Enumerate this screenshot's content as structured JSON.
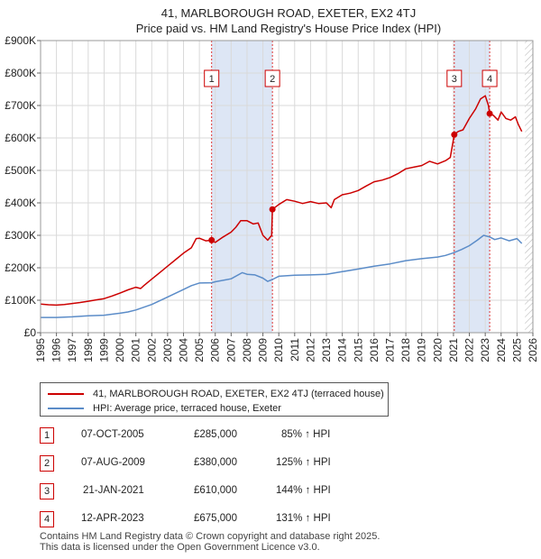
{
  "title_line1": "41, MARLBOROUGH ROAD, EXETER, EX2 4TJ",
  "title_line2": "Price paid vs. HM Land Registry's House Price Index (HPI)",
  "colors": {
    "property": "#cc0000",
    "hpi": "#5b8cc8",
    "shade": "#dde6f5",
    "grid": "#d9d9d9",
    "vline": "#dd3333"
  },
  "legend": {
    "property": "41, MARLBOROUGH ROAD, EXETER, EX2 4TJ (terraced house)",
    "hpi": "HPI: Average price, terraced house, Exeter"
  },
  "sales": [
    {
      "num": "1",
      "date": "07-OCT-2005",
      "price": "£285,000",
      "pct": "85% ↑ HPI"
    },
    {
      "num": "2",
      "date": "07-AUG-2009",
      "price": "£380,000",
      "pct": "125% ↑ HPI"
    },
    {
      "num": "3",
      "date": "21-JAN-2021",
      "price": "£610,000",
      "pct": "144% ↑ HPI"
    },
    {
      "num": "4",
      "date": "12-APR-2023",
      "price": "£675,000",
      "pct": "131% ↑ HPI"
    }
  ],
  "footer": {
    "line1": "Contains HM Land Registry data © Crown copyright and database right 2025.",
    "line2": "This data is licensed under the Open Government Licence v3.0."
  },
  "chart_data": {
    "type": "line",
    "title": "41, MARLBOROUGH ROAD, EXETER, EX2 4TJ — Price paid vs. HM Land Registry's House Price Index (HPI)",
    "xlabel": "",
    "ylabel": "",
    "xlim": [
      1995,
      2026
    ],
    "ylim": [
      0,
      900000
    ],
    "x_ticks": [
      "1995",
      "1996",
      "1997",
      "1998",
      "1999",
      "2000",
      "2001",
      "2002",
      "2003",
      "2004",
      "2005",
      "2006",
      "2007",
      "2008",
      "2009",
      "2010",
      "2011",
      "2012",
      "2013",
      "2014",
      "2015",
      "2016",
      "2017",
      "2018",
      "2019",
      "2020",
      "2021",
      "2022",
      "2023",
      "2024",
      "2025",
      "2026"
    ],
    "y_ticks": [
      {
        "value": 0,
        "label": "£0"
      },
      {
        "value": 100000,
        "label": "£100K"
      },
      {
        "value": 200000,
        "label": "£200K"
      },
      {
        "value": 300000,
        "label": "£300K"
      },
      {
        "value": 400000,
        "label": "£400K"
      },
      {
        "value": 500000,
        "label": "£500K"
      },
      {
        "value": 600000,
        "label": "£600K"
      },
      {
        "value": 700000,
        "label": "£700K"
      },
      {
        "value": 800000,
        "label": "£800K"
      },
      {
        "value": 900000,
        "label": "£900K"
      }
    ],
    "grid": true,
    "shaded_ranges": [
      [
        2005.77,
        2009.6
      ],
      [
        2021.05,
        2023.28
      ]
    ],
    "future_hatch_from": 2025.5,
    "sale_markers": [
      {
        "label": "1",
        "x": 2005.77,
        "y": 285000
      },
      {
        "label": "2",
        "x": 2009.6,
        "y": 380000
      },
      {
        "label": "3",
        "x": 2021.05,
        "y": 610000
      },
      {
        "label": "4",
        "x": 2023.28,
        "y": 675000
      }
    ],
    "series": [
      {
        "name": "41, MARLBOROUGH ROAD, EXETER, EX2 4TJ (terraced house)",
        "points": [
          [
            1995,
            88000
          ],
          [
            1995.5,
            86000
          ],
          [
            1996,
            85000
          ],
          [
            1996.5,
            87000
          ],
          [
            1997,
            90000
          ],
          [
            1997.5,
            93000
          ],
          [
            1998,
            97000
          ],
          [
            1998.5,
            101000
          ],
          [
            1999,
            105000
          ],
          [
            1999.5,
            113000
          ],
          [
            2000,
            122000
          ],
          [
            2000.5,
            132000
          ],
          [
            2001,
            140000
          ],
          [
            2001.3,
            136000
          ],
          [
            2001.5,
            145000
          ],
          [
            2002,
            165000
          ],
          [
            2002.5,
            185000
          ],
          [
            2003,
            205000
          ],
          [
            2003.5,
            225000
          ],
          [
            2004,
            245000
          ],
          [
            2004.5,
            262000
          ],
          [
            2004.8,
            290000
          ],
          [
            2005,
            291000
          ],
          [
            2005.4,
            283000
          ],
          [
            2005.77,
            285000
          ],
          [
            2006,
            278000
          ],
          [
            2006.5,
            295000
          ],
          [
            2007,
            310000
          ],
          [
            2007.3,
            325000
          ],
          [
            2007.6,
            345000
          ],
          [
            2008,
            345000
          ],
          [
            2008.4,
            335000
          ],
          [
            2008.7,
            338000
          ],
          [
            2009,
            300000
          ],
          [
            2009.3,
            285000
          ],
          [
            2009.55,
            300000
          ],
          [
            2009.6,
            380000
          ],
          [
            2010,
            395000
          ],
          [
            2010.5,
            410000
          ],
          [
            2011,
            405000
          ],
          [
            2011.5,
            398000
          ],
          [
            2012,
            404000
          ],
          [
            2012.5,
            398000
          ],
          [
            2013,
            400000
          ],
          [
            2013.3,
            385000
          ],
          [
            2013.5,
            410000
          ],
          [
            2014,
            425000
          ],
          [
            2014.5,
            430000
          ],
          [
            2015,
            438000
          ],
          [
            2015.5,
            452000
          ],
          [
            2016,
            465000
          ],
          [
            2016.5,
            470000
          ],
          [
            2017,
            478000
          ],
          [
            2017.5,
            490000
          ],
          [
            2018,
            505000
          ],
          [
            2018.5,
            510000
          ],
          [
            2019,
            515000
          ],
          [
            2019.5,
            528000
          ],
          [
            2020,
            520000
          ],
          [
            2020.5,
            530000
          ],
          [
            2020.8,
            540000
          ],
          [
            2021.05,
            610000
          ],
          [
            2021.3,
            620000
          ],
          [
            2021.6,
            625000
          ],
          [
            2022,
            660000
          ],
          [
            2022.4,
            690000
          ],
          [
            2022.7,
            720000
          ],
          [
            2023,
            730000
          ],
          [
            2023.2,
            700000
          ],
          [
            2023.28,
            675000
          ],
          [
            2023.5,
            670000
          ],
          [
            2023.8,
            655000
          ],
          [
            2024,
            680000
          ],
          [
            2024.3,
            660000
          ],
          [
            2024.6,
            655000
          ],
          [
            2024.9,
            665000
          ],
          [
            2025.1,
            640000
          ],
          [
            2025.3,
            620000
          ]
        ]
      },
      {
        "name": "HPI: Average price, terraced house, Exeter",
        "points": [
          [
            1995,
            47000
          ],
          [
            1996,
            47000
          ],
          [
            1997,
            49000
          ],
          [
            1998,
            52000
          ],
          [
            1999,
            54000
          ],
          [
            2000,
            60000
          ],
          [
            2000.5,
            64000
          ],
          [
            2001,
            70000
          ],
          [
            2002,
            87000
          ],
          [
            2003,
            110000
          ],
          [
            2004,
            133000
          ],
          [
            2004.5,
            145000
          ],
          [
            2005,
            153000
          ],
          [
            2005.77,
            154000
          ],
          [
            2006,
            157000
          ],
          [
            2007,
            166000
          ],
          [
            2007.7,
            185000
          ],
          [
            2008,
            180000
          ],
          [
            2008.5,
            178000
          ],
          [
            2009,
            168000
          ],
          [
            2009.3,
            158000
          ],
          [
            2009.6,
            164000
          ],
          [
            2010,
            174000
          ],
          [
            2011,
            177000
          ],
          [
            2012,
            178000
          ],
          [
            2013,
            180000
          ],
          [
            2014,
            188000
          ],
          [
            2015,
            196000
          ],
          [
            2016,
            205000
          ],
          [
            2017,
            212000
          ],
          [
            2018,
            222000
          ],
          [
            2019,
            228000
          ],
          [
            2020,
            233000
          ],
          [
            2020.5,
            238000
          ],
          [
            2021,
            246000
          ],
          [
            2021.5,
            256000
          ],
          [
            2022,
            268000
          ],
          [
            2022.5,
            285000
          ],
          [
            2022.9,
            300000
          ],
          [
            2023.28,
            295000
          ],
          [
            2023.6,
            287000
          ],
          [
            2024,
            292000
          ],
          [
            2024.5,
            283000
          ],
          [
            2025,
            290000
          ],
          [
            2025.3,
            275000
          ]
        ]
      }
    ]
  }
}
